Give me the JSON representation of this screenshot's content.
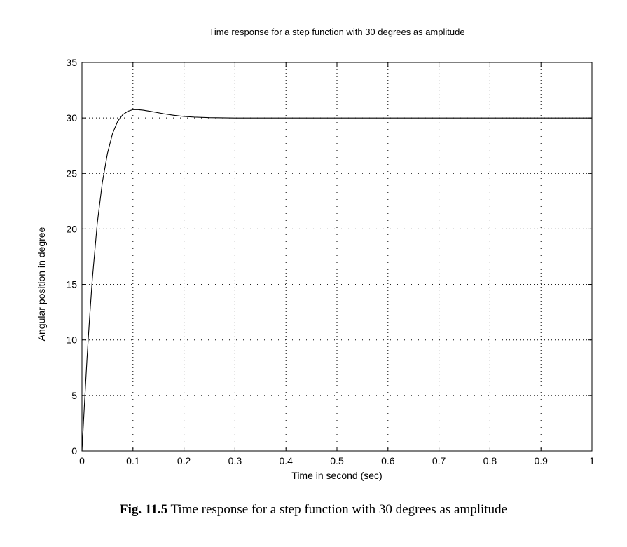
{
  "chart_data": {
    "type": "line",
    "title": "Time response for a step function with 30 degrees as amplitude",
    "xlabel": "Time in second (sec)",
    "ylabel": "Angular position in degree",
    "xlim": [
      0,
      1
    ],
    "ylim": [
      0,
      35
    ],
    "grid": true,
    "x_ticks": [
      0,
      0.1,
      0.2,
      0.3,
      0.4,
      0.5,
      0.6,
      0.7,
      0.8,
      0.9,
      1
    ],
    "x_tick_labels": [
      "0",
      "0.1",
      "0.2",
      "0.3",
      "0.4",
      "0.5",
      "0.6",
      "0.7",
      "0.8",
      "0.9",
      "1"
    ],
    "y_ticks": [
      0,
      5,
      10,
      15,
      20,
      25,
      30,
      35
    ],
    "y_tick_labels": [
      "0",
      "5",
      "10",
      "15",
      "20",
      "25",
      "30",
      "35"
    ],
    "series": [
      {
        "x": [
          0,
          0.005,
          0.01,
          0.015,
          0.02,
          0.03,
          0.04,
          0.05,
          0.06,
          0.07,
          0.08,
          0.09,
          0.1,
          0.11,
          0.12,
          0.14,
          0.16,
          0.18,
          0.2,
          0.22,
          0.25,
          0.3,
          0.4,
          0.5,
          0.6,
          0.7,
          0.8,
          0.9,
          1.0
        ],
        "y": [
          0,
          4.3,
          8.4,
          12.0,
          15.3,
          20.5,
          24.2,
          26.8,
          28.6,
          29.7,
          30.3,
          30.6,
          30.75,
          30.75,
          30.7,
          30.55,
          30.38,
          30.24,
          30.14,
          30.08,
          30.03,
          30.0,
          30.0,
          30.0,
          30.0,
          30.0,
          30.0,
          30.0,
          30.0
        ]
      }
    ]
  },
  "caption": {
    "number": "Fig. 11.5",
    "text": " Time response for a step function with 30 degrees as amplitude"
  }
}
